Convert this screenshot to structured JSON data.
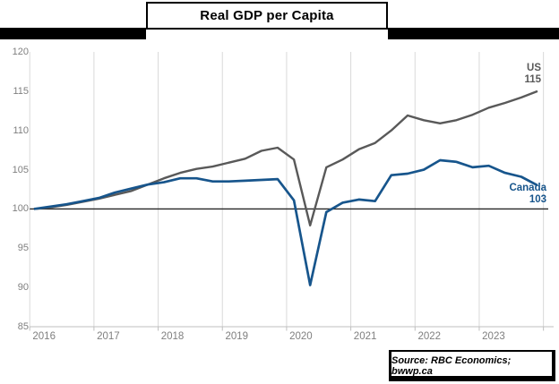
{
  "title": "Real GDP per Capita",
  "source_note": "Source: RBC Economics; bwwp.ca",
  "colors": {
    "us_line": "#595959",
    "canada_line": "#17558C",
    "gridline": "#D9D9D9",
    "axis_line": "#BFBFBF",
    "reference_line": "#262626",
    "tick_label": "#7F7F7F"
  },
  "annotations": {
    "us_label": "US",
    "us_value": "115",
    "canada_label": "Canada",
    "canada_value": "103"
  },
  "chart_data": {
    "type": "line",
    "title": "Real GDP per Capita",
    "x_tick_labels": [
      "2016",
      "2017",
      "2018",
      "2019",
      "2020",
      "2021",
      "2022",
      "2023"
    ],
    "y_ticks": [
      85,
      90,
      95,
      100,
      105,
      110,
      115,
      120
    ],
    "ylim": [
      85,
      120
    ],
    "grid": "vertical-only",
    "reference_line_y": 100,
    "legend": "end-of-line labels (US gray, Canada blue)",
    "quarters": [
      "2016Q1",
      "2016Q2",
      "2016Q3",
      "2016Q4",
      "2017Q1",
      "2017Q2",
      "2017Q3",
      "2017Q4",
      "2018Q1",
      "2018Q2",
      "2018Q3",
      "2018Q4",
      "2019Q1",
      "2019Q2",
      "2019Q3",
      "2019Q4",
      "2020Q1",
      "2020Q2",
      "2020Q3",
      "2020Q4",
      "2021Q1",
      "2021Q2",
      "2021Q3",
      "2021Q4",
      "2022Q1",
      "2022Q2",
      "2022Q3",
      "2022Q4",
      "2023Q1",
      "2023Q2",
      "2023Q3",
      "2023Q4"
    ],
    "series": [
      {
        "name": "US",
        "color": "#595959",
        "end_value": 115,
        "values": [
          100.0,
          100.2,
          100.5,
          100.9,
          101.3,
          101.8,
          102.3,
          103.1,
          103.9,
          104.6,
          105.1,
          105.4,
          105.9,
          106.4,
          107.4,
          107.8,
          106.3,
          97.9,
          105.3,
          106.3,
          107.6,
          108.4,
          110.0,
          111.9,
          111.3,
          110.9,
          111.3,
          112.0,
          112.9,
          113.5,
          114.2,
          115.0
        ]
      },
      {
        "name": "Canada",
        "color": "#17558C",
        "end_value": 103,
        "values": [
          100.0,
          100.3,
          100.6,
          101.0,
          101.4,
          102.1,
          102.6,
          103.1,
          103.4,
          103.9,
          103.9,
          103.5,
          103.5,
          103.6,
          103.7,
          103.8,
          101.1,
          90.3,
          99.6,
          100.8,
          101.2,
          101.0,
          104.3,
          104.5,
          105.0,
          106.2,
          106.0,
          105.3,
          105.5,
          104.6,
          104.1,
          103.0
        ]
      }
    ]
  }
}
